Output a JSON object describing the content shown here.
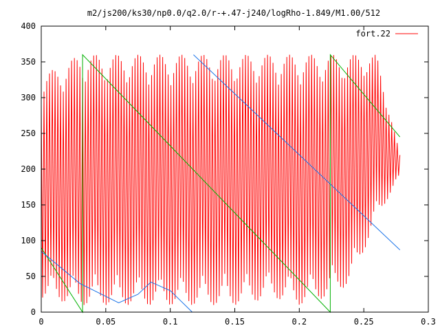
{
  "chart_data": {
    "type": "line",
    "title": "m2/js200/ks30/np0.0/q2.0/r-+.47-j240/logRho-1.849/M1.00/512",
    "xlabel": "",
    "ylabel": "",
    "xlim": [
      0,
      0.3
    ],
    "ylim": [
      0,
      400
    ],
    "x_ticks": [
      "0",
      "0.05",
      "0.1",
      "0.15",
      "0.2",
      "0.25",
      "0.3"
    ],
    "y_ticks": [
      "0",
      "50",
      "100",
      "150",
      "200",
      "250",
      "300",
      "350",
      "400"
    ],
    "grid": false,
    "legend_position": "top-right",
    "colors": {
      "series1": "#ff0000",
      "series2": "#00b000",
      "series3": "#1a73e8",
      "frame": "#000000"
    },
    "series": [
      {
        "name": "fort.22",
        "description_kind": "rapid oscillation",
        "x": [
          0.0,
          0.03,
          0.06,
          0.09,
          0.12,
          0.15,
          0.18,
          0.2,
          0.22,
          0.24,
          0.26,
          0.278
        ],
        "y_upper": [
          330,
          360,
          360,
          360,
          360,
          360,
          360,
          360,
          360,
          360,
          360,
          220
        ],
        "y_lower": [
          20,
          10,
          10,
          10,
          10,
          10,
          20,
          10,
          20,
          40,
          130,
          190
        ]
      },
      {
        "name": "",
        "x": [
          0.0,
          0.032,
          0.032,
          0.224,
          0.224,
          0.278
        ],
        "y": [
          90,
          0,
          360,
          0,
          360,
          245
        ]
      },
      {
        "name": "",
        "x": [
          0.0,
          0.03,
          0.06,
          0.075,
          0.085,
          0.1,
          0.117,
          0.118,
          0.278
        ],
        "y": [
          85,
          40,
          13,
          25,
          42,
          30,
          0,
          360,
          87
        ]
      }
    ]
  }
}
